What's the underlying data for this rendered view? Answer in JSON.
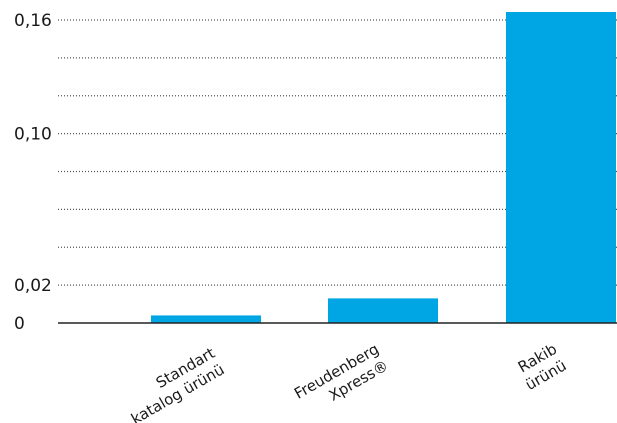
{
  "chart_data": {
    "type": "bar",
    "categories": [
      [
        "Standart",
        "katalog ürünü"
      ],
      [
        "Freudenberg",
        "Xpress®"
      ],
      [
        "Rakib",
        "ürünü"
      ]
    ],
    "values": [
      0.004,
      0.013,
      0.165
    ],
    "y_ticks": [
      {
        "label": "0,16",
        "value": 0.16
      },
      {
        "label": "0,10",
        "value": 0.1
      },
      {
        "label": "0,02",
        "value": 0.02
      },
      {
        "label": "0",
        "value": 0
      }
    ],
    "ylim": [
      0,
      0.16
    ],
    "grid": "dotted horizontal",
    "colors": {
      "bar": "#00a5e3",
      "grid": "#555555",
      "axis": "#222222"
    }
  }
}
